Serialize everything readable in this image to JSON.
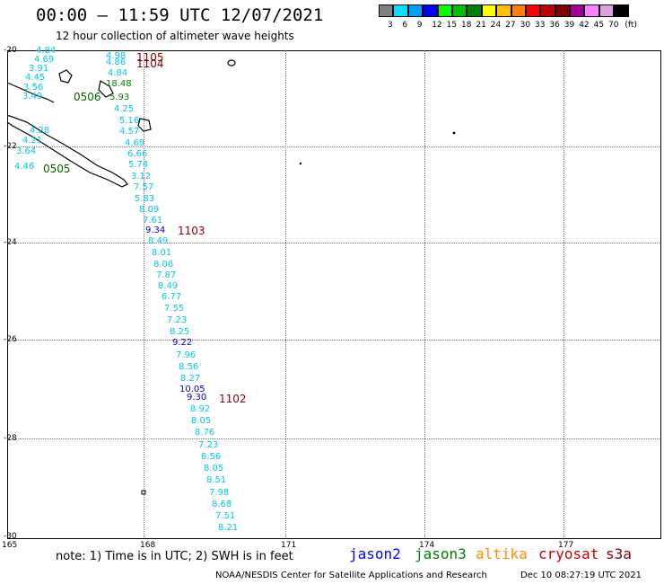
{
  "title": "00:00 – 11:59 UTC 12/07/2021",
  "subtitle": "12 hour collection of altimeter wave heights",
  "legend": {
    "colors": [
      "#808080",
      "#00e0ff",
      "#00a0ff",
      "#0000ff",
      "#00ff00",
      "#00c000",
      "#008000",
      "#ffff00",
      "#ffc000",
      "#ff8000",
      "#ff0000",
      "#c00000",
      "#800000",
      "#a000a0",
      "#ff80ff",
      "#e0a0e0",
      "#000000"
    ],
    "labels": [
      "3",
      "6",
      "9",
      "12",
      "15",
      "18",
      "21",
      "24",
      "27",
      "30",
      "33",
      "36",
      "39",
      "42",
      "45",
      "70",
      "(ft)"
    ]
  },
  "axes": {
    "lat_labels": [
      "-20",
      "-22",
      "-24",
      "-26",
      "-28",
      "-30"
    ],
    "lon_labels": [
      "165",
      "168",
      "171",
      "174",
      "177"
    ]
  },
  "observations": [
    {
      "v": "4.84",
      "c": "cyan"
    },
    {
      "v": "4.69",
      "c": "cyan"
    },
    {
      "v": "3.91",
      "c": "cyan"
    },
    {
      "v": "4.45",
      "c": "cyan"
    },
    {
      "v": "3.56",
      "c": "cyan"
    },
    {
      "v": "3.49",
      "c": "cyan"
    },
    {
      "v": "4.98",
      "c": "cyan"
    },
    {
      "v": "4.86",
      "c": "cyan"
    },
    {
      "v": "4.84",
      "c": "cyan"
    },
    {
      "v": "18.48",
      "c": "green"
    },
    {
      "v": "5.93",
      "c": "green"
    },
    {
      "v": "4.25",
      "c": "cyan"
    },
    {
      "v": "5.16",
      "c": "cyan"
    },
    {
      "v": "4.57",
      "c": "cyan"
    },
    {
      "v": "4.69",
      "c": "cyan"
    },
    {
      "v": "6.66",
      "c": "cyan"
    },
    {
      "v": "5.74",
      "c": "cyan"
    },
    {
      "v": "3.12",
      "c": "cyan"
    },
    {
      "v": "7.57",
      "c": "cyan"
    },
    {
      "v": "5.83",
      "c": "cyan"
    },
    {
      "v": "8.09",
      "c": "cyan"
    },
    {
      "v": "7.61",
      "c": "cyan"
    },
    {
      "v": "9.34",
      "c": "blue"
    },
    {
      "v": "8.49",
      "c": "cyan"
    },
    {
      "v": "8.01",
      "c": "cyan"
    },
    {
      "v": "8.06",
      "c": "cyan"
    },
    {
      "v": "7.87",
      "c": "cyan"
    },
    {
      "v": "8.49",
      "c": "cyan"
    },
    {
      "v": "6.77",
      "c": "cyan"
    },
    {
      "v": "7.55",
      "c": "cyan"
    },
    {
      "v": "7.23",
      "c": "cyan"
    },
    {
      "v": "8.25",
      "c": "cyan"
    },
    {
      "v": "9.22",
      "c": "blue"
    },
    {
      "v": "7.96",
      "c": "cyan"
    },
    {
      "v": "8.56",
      "c": "cyan"
    },
    {
      "v": "8.27",
      "c": "cyan"
    },
    {
      "v": "10.05",
      "c": "blue"
    },
    {
      "v": "9.30",
      "c": "blue"
    },
    {
      "v": "8.92",
      "c": "cyan"
    },
    {
      "v": "8.05",
      "c": "cyan"
    },
    {
      "v": "8.76",
      "c": "cyan"
    },
    {
      "v": "7.23",
      "c": "cyan"
    },
    {
      "v": "8.56",
      "c": "cyan"
    },
    {
      "v": "8.05",
      "c": "cyan"
    },
    {
      "v": "8.51",
      "c": "cyan"
    },
    {
      "v": "7.98",
      "c": "cyan"
    },
    {
      "v": "8.68",
      "c": "cyan"
    },
    {
      "v": "7.51",
      "c": "cyan"
    },
    {
      "v": "8.21",
      "c": "cyan"
    },
    {
      "v": "4.28",
      "c": "cyan"
    },
    {
      "v": "4.21",
      "c": "cyan"
    },
    {
      "v": "3.64",
      "c": "cyan"
    },
    {
      "v": "4.46",
      "c": "cyan"
    }
  ],
  "track_ids": [
    {
      "id": "1105",
      "c": "darkred"
    },
    {
      "id": "1104",
      "c": "darkred"
    },
    {
      "id": "0506",
      "c": "green"
    },
    {
      "id": "0505",
      "c": "green"
    },
    {
      "id": "1103",
      "c": "darkred"
    },
    {
      "id": "1102",
      "c": "darkred"
    }
  ],
  "note": "note:  1) Time is in UTC;  2) SWH is in feet",
  "satellites": [
    {
      "name": "jason2",
      "color": "#0000ff"
    },
    {
      "name": "jason3",
      "color": "#008000"
    },
    {
      "name": "altika",
      "color": "#ff8c00"
    },
    {
      "name": "cryosat",
      "color": "#cc0000"
    },
    {
      "name": "s3a",
      "color": "#800000"
    }
  ],
  "footer": "NOAA/NESDIS Center for Satellite Applications and Research",
  "footer_date": "Dec 10 08:27:19 UTC 2021"
}
